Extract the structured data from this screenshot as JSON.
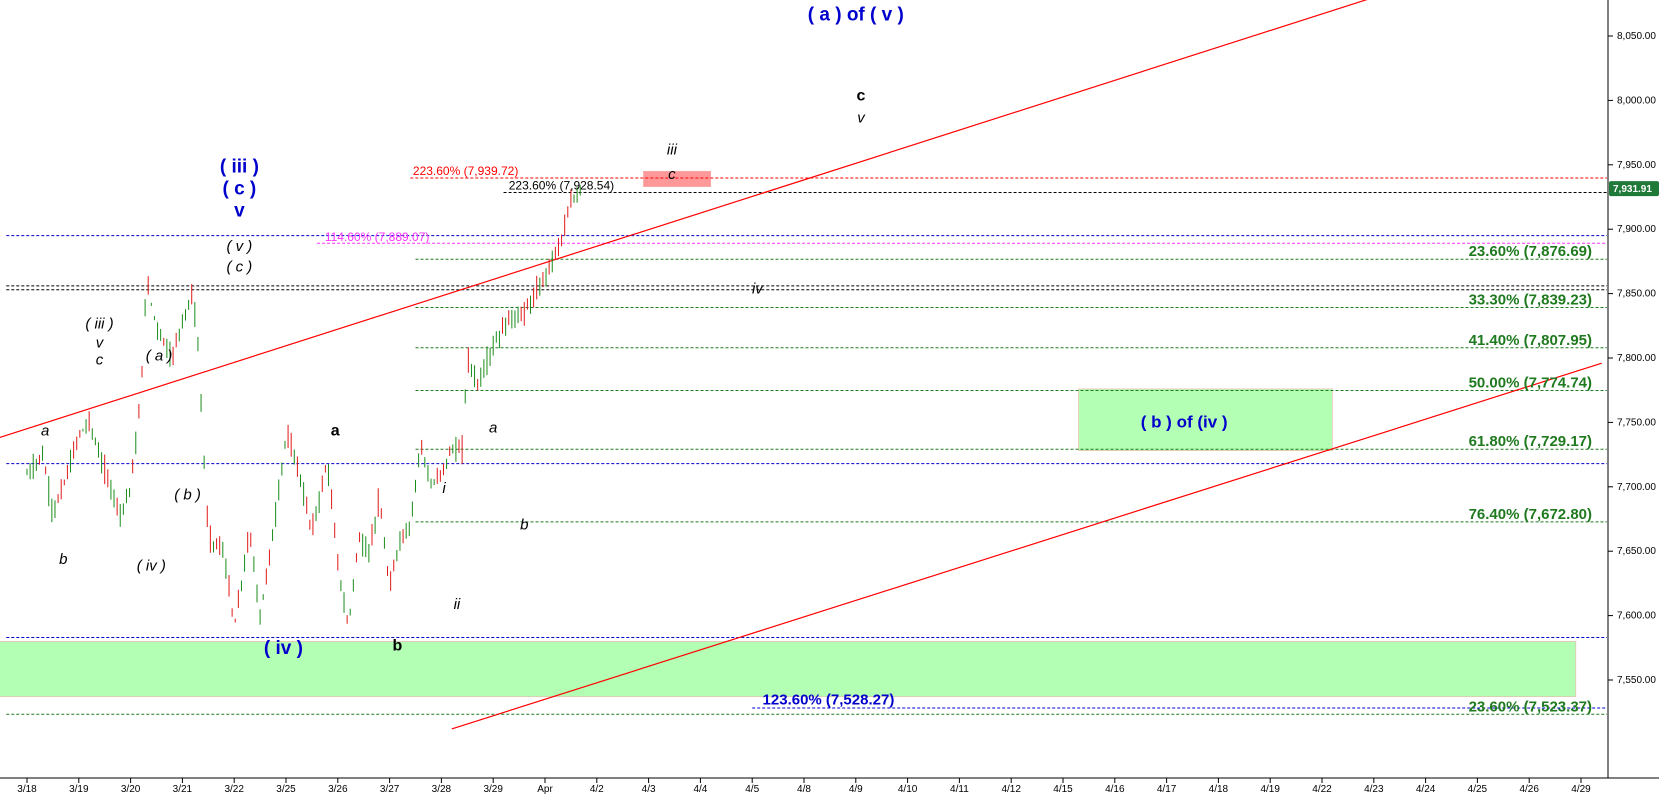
{
  "chart_data": {
    "type": "line",
    "title": "",
    "xlabel": "",
    "ylabel": "",
    "ylim": [
      7495,
      8085
    ],
    "grid": false,
    "y_ticks": [
      "8,050.00",
      "8,000.00",
      "7,950.00",
      "7,900.00",
      "7,850.00",
      "7,800.00",
      "7,750.00",
      "7,700.00",
      "7,650.00",
      "7,600.00",
      "7,550.00"
    ],
    "y_tick_values": [
      8050,
      8000,
      7950,
      7900,
      7850,
      7800,
      7750,
      7700,
      7650,
      7600,
      7550
    ],
    "x_ticks": [
      "3/18",
      "3/19",
      "3/20",
      "3/21",
      "3/22",
      "3/25",
      "3/26",
      "3/27",
      "3/28",
      "3/29",
      "Apr",
      "4/2",
      "4/3",
      "4/4",
      "4/5",
      "4/8",
      "4/9",
      "4/10",
      "4/11",
      "4/12",
      "4/15",
      "4/16",
      "4/17",
      "4/18",
      "4/19",
      "4/22",
      "4/23",
      "4/24",
      "4/25",
      "4/26",
      "4/29"
    ],
    "last_price": {
      "label": "7,931.91",
      "value": 7931.91,
      "color": "#1f7a3a"
    },
    "price_path": [
      [
        0,
        7710
      ],
      [
        0.3,
        7725
      ],
      [
        0.5,
        7680
      ],
      [
        0.7,
        7700
      ],
      [
        1,
        7740
      ],
      [
        1.2,
        7750
      ],
      [
        1.5,
        7712
      ],
      [
        1.8,
        7680
      ],
      [
        2,
        7700
      ],
      [
        2.2,
        7770
      ],
      [
        2.3,
        7860
      ],
      [
        2.5,
        7825
      ],
      [
        2.8,
        7800
      ],
      [
        3,
        7830
      ],
      [
        3.2,
        7850
      ],
      [
        3.3,
        7810
      ],
      [
        3.5,
        7660
      ],
      [
        3.8,
        7650
      ],
      [
        4,
        7590
      ],
      [
        4.2,
        7640
      ],
      [
        4.3,
        7665
      ],
      [
        4.5,
        7600
      ],
      [
        4.7,
        7650
      ],
      [
        5,
        7740
      ],
      [
        5.2,
        7720
      ],
      [
        5.5,
        7665
      ],
      [
        5.8,
        7720
      ],
      [
        6,
        7640
      ],
      [
        6.2,
        7590
      ],
      [
        6.4,
        7660
      ],
      [
        6.6,
        7650
      ],
      [
        6.8,
        7690
      ],
      [
        7,
        7620
      ],
      [
        7.2,
        7660
      ],
      [
        7.4,
        7670
      ],
      [
        7.6,
        7735
      ],
      [
        7.8,
        7700
      ],
      [
        8,
        7710
      ],
      [
        8.2,
        7730
      ],
      [
        8.4,
        7728
      ],
      [
        8.5,
        7800
      ],
      [
        8.7,
        7780
      ],
      [
        9,
        7810
      ],
      [
        9.3,
        7830
      ],
      [
        9.6,
        7835
      ],
      [
        9.9,
        7855
      ],
      [
        10.3,
        7890
      ],
      [
        10.5,
        7920
      ],
      [
        10.7,
        7932
      ]
    ],
    "lines": [
      {
        "kind": "horizontal",
        "value": 7895,
        "color": "#0000cc",
        "style": "dashed",
        "from": -0.4,
        "to": 30.5
      },
      {
        "kind": "horizontal",
        "value": 7718,
        "color": "#0000cc",
        "style": "dashed",
        "from": -0.4,
        "to": 30.5
      },
      {
        "kind": "horizontal",
        "value": 7583,
        "color": "#0000cc",
        "style": "dashed",
        "from": -0.4,
        "to": 30.5
      },
      {
        "kind": "horizontal",
        "value": 7856,
        "color": "#000000",
        "style": "dashed",
        "from": -0.4,
        "to": 30.5
      },
      {
        "kind": "horizontal",
        "value": 7853,
        "color": "#000000",
        "style": "dashed",
        "from": -0.4,
        "to": 30.5
      },
      {
        "kind": "horizontal",
        "value": 7939.72,
        "color": "#ff0000",
        "style": "dashed",
        "from": 7.4,
        "to": 30.5
      },
      {
        "kind": "horizontal",
        "value": 7928.54,
        "color": "#000000",
        "style": "dashed",
        "from": 9.2,
        "to": 30.5
      },
      {
        "kind": "horizontal",
        "value": 7889.07,
        "color": "#ff33ff",
        "style": "dashed",
        "from": 5.6,
        "to": 30.5
      },
      {
        "kind": "horizontal",
        "value": 7528.27,
        "color": "#0000cc",
        "style": "dashed",
        "from": 14.0,
        "to": 30.5
      },
      {
        "kind": "horizontal",
        "value": 7876.69,
        "color": "#1f7a1f",
        "style": "dashed",
        "from": 7.5,
        "to": 30.5
      },
      {
        "kind": "horizontal",
        "value": 7839.23,
        "color": "#1f7a1f",
        "style": "dashed",
        "from": 7.5,
        "to": 30.5
      },
      {
        "kind": "horizontal",
        "value": 7807.95,
        "color": "#1f7a1f",
        "style": "dashed",
        "from": 7.5,
        "to": 30.5
      },
      {
        "kind": "horizontal",
        "value": 7774.74,
        "color": "#1f7a1f",
        "style": "dashed",
        "from": 7.5,
        "to": 30.5
      },
      {
        "kind": "horizontal",
        "value": 7729.17,
        "color": "#1f7a1f",
        "style": "dashed",
        "from": 7.5,
        "to": 30.5
      },
      {
        "kind": "horizontal",
        "value": 7672.8,
        "color": "#1f7a1f",
        "style": "dashed",
        "from": 7.5,
        "to": 30.5
      },
      {
        "kind": "horizontal",
        "value": 7523.37,
        "color": "#1f7a1f",
        "style": "dashed",
        "from": -0.4,
        "to": 30.5
      },
      {
        "kind": "trend",
        "x1": -0.55,
        "y1": 7738,
        "x2": 26.0,
        "y2": 8080,
        "color": "#ff0000"
      },
      {
        "kind": "trend",
        "x1": 8.2,
        "y1": 7512,
        "x2": 30.4,
        "y2": 7796,
        "color": "#ff0000"
      }
    ],
    "zones": [
      {
        "x1": -0.6,
        "x2": 29.9,
        "y1": 7537,
        "y2": 7580,
        "color": "#b3ffb3"
      },
      {
        "x1": 20.3,
        "x2": 25.2,
        "y1": 7728,
        "y2": 7776,
        "color": "#b3ffb3"
      },
      {
        "x1": 11.9,
        "x2": 13.2,
        "y1": 7933,
        "y2": 7945,
        "color": "#ff9999"
      }
    ],
    "fib_levels": [
      {
        "label": "23.60% (7,876.69)",
        "value": 7876.69
      },
      {
        "label": "33.30% (7,839.23)",
        "value": 7839.23
      },
      {
        "label": "41.40% (7,807.95)",
        "value": 7807.95
      },
      {
        "label": "50.00% (7,774.74)",
        "value": 7774.74
      },
      {
        "label": "61.80% (7,729.17)",
        "value": 7729.17
      },
      {
        "label": "76.40% (7,672.80)",
        "value": 7672.8
      },
      {
        "label": "23.60% (7,523.37)",
        "value": 7523.37
      }
    ],
    "annotations": [
      {
        "text": "223.60% (7,939.72)",
        "x": 7.45,
        "y": 7942,
        "color": "#ff0000",
        "style": "small"
      },
      {
        "text": "223.60% (7,928.54)",
        "x": 9.3,
        "y": 7931,
        "color": "#000000",
        "style": "small"
      },
      {
        "text": "114.60% (7,889.07)",
        "x": 5.75,
        "y": 7891,
        "color": "#ff33ff",
        "style": "small"
      },
      {
        "text": "123.60% (7,528.27)",
        "x": 14.2,
        "y": 7531,
        "color": "#0000cc",
        "style": "fib"
      },
      {
        "text": "( a ) of ( v )",
        "x": 16.0,
        "y": 8062,
        "color": "#0000cc",
        "style": "blue"
      },
      {
        "text": "c",
        "x": 16.1,
        "y": 8000,
        "color": "#000000",
        "style": "blackbold"
      },
      {
        "text": "v",
        "x": 16.1,
        "y": 7983,
        "color": "#000000",
        "style": "black"
      },
      {
        "text": "iii",
        "x": 12.45,
        "y": 7958,
        "color": "#000000",
        "style": "black"
      },
      {
        "text": "c",
        "x": 12.45,
        "y": 7939,
        "color": "#000000",
        "style": "black"
      },
      {
        "text": "( iii )",
        "x": 4.1,
        "y": 7944,
        "color": "#0000cc",
        "style": "blue"
      },
      {
        "text": "( c )",
        "x": 4.1,
        "y": 7927,
        "color": "#0000cc",
        "style": "blue"
      },
      {
        "text": "v",
        "x": 4.1,
        "y": 7910,
        "color": "#0000cc",
        "style": "blue"
      },
      {
        "text": "( v )",
        "x": 4.1,
        "y": 7883,
        "color": "#000000",
        "style": "black"
      },
      {
        "text": "( c )",
        "x": 4.1,
        "y": 7867,
        "color": "#000000",
        "style": "black"
      },
      {
        "text": "( iii )",
        "x": 1.4,
        "y": 7823,
        "color": "#000000",
        "style": "black"
      },
      {
        "text": "v",
        "x": 1.4,
        "y": 7808,
        "color": "#000000",
        "style": "black"
      },
      {
        "text": "c",
        "x": 1.4,
        "y": 7795,
        "color": "#000000",
        "style": "black"
      },
      {
        "text": "( a )",
        "x": 2.55,
        "y": 7798,
        "color": "#000000",
        "style": "black"
      },
      {
        "text": "a",
        "x": 0.35,
        "y": 7740,
        "color": "#000000",
        "style": "black"
      },
      {
        "text": "b",
        "x": 0.7,
        "y": 7640,
        "color": "#000000",
        "style": "black"
      },
      {
        "text": "( b )",
        "x": 3.1,
        "y": 7690,
        "color": "#000000",
        "style": "black"
      },
      {
        "text": "( iv )",
        "x": 2.4,
        "y": 7635,
        "color": "#000000",
        "style": "black"
      },
      {
        "text": "( iv )",
        "x": 4.95,
        "y": 7570,
        "color": "#0000cc",
        "style": "blue"
      },
      {
        "text": "a",
        "x": 5.95,
        "y": 7740,
        "color": "#000000",
        "style": "blackbold"
      },
      {
        "text": "b",
        "x": 7.15,
        "y": 7573,
        "color": "#000000",
        "style": "blackbold"
      },
      {
        "text": "i",
        "x": 8.05,
        "y": 7695,
        "color": "#000000",
        "style": "black"
      },
      {
        "text": "ii",
        "x": 8.3,
        "y": 7605,
        "color": "#000000",
        "style": "black"
      },
      {
        "text": "a",
        "x": 9.0,
        "y": 7742,
        "color": "#000000",
        "style": "black"
      },
      {
        "text": "b",
        "x": 9.6,
        "y": 7667,
        "color": "#000000",
        "style": "black"
      },
      {
        "text": "iv",
        "x": 14.1,
        "y": 7850,
        "color": "#000000",
        "style": "black"
      },
      {
        "text": "( b ) of (iv )",
        "x": 21.5,
        "y": 7746,
        "color": "#0000cc",
        "style": "bluesmall"
      }
    ]
  }
}
